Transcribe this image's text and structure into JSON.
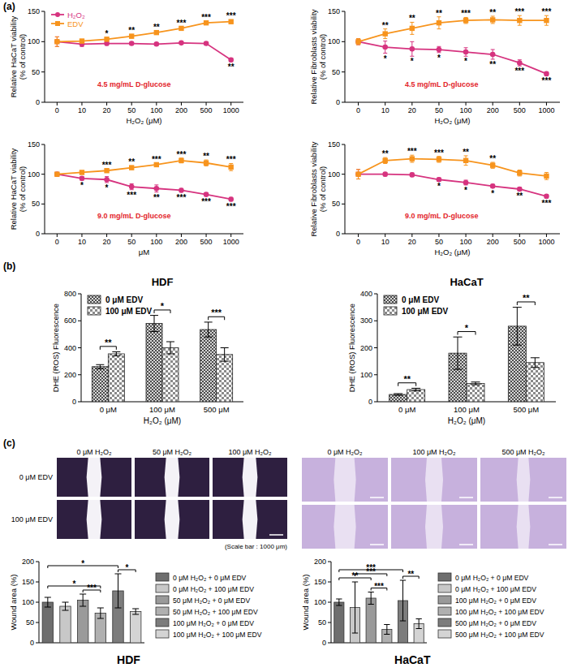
{
  "panel_labels": [
    "(a)",
    "(b)",
    "(c)"
  ],
  "image_grids": [
    {
      "columns": [
        "0 μM H₂O₂",
        "50 μM H₂O₂",
        "100 μM H₂O₂"
      ],
      "rows": [
        "0 μM EDV",
        "100 μM EDV"
      ],
      "caption": "(Scale bar : 1000 μm)"
    },
    {
      "columns": [
        "0 μM H₂O₂",
        "100 μM H₂O₂",
        "500 μM H₂O₂"
      ]
    }
  ],
  "chart_data": [
    {
      "type": "line",
      "ylabel": "Relative HaCaT viability\n(% of control)",
      "xlabel": "H₂O₂ (μM)",
      "annotation": "4.5 mg/mL D-glucose",
      "categories": [
        "0",
        "10",
        "20",
        "50",
        "100",
        "200",
        "500",
        "1000"
      ],
      "ylim": [
        0,
        150
      ],
      "yticks": [
        0,
        50,
        100,
        150
      ],
      "legend": "top-left",
      "series": [
        {
          "name": "H₂O₂",
          "color": "#d6337f",
          "marker": "circle",
          "values": [
            100,
            96,
            97,
            97,
            96,
            98,
            97,
            70
          ],
          "errors": [
            8,
            4,
            3,
            2,
            2,
            2,
            2,
            3
          ],
          "significance": [
            null,
            null,
            null,
            null,
            null,
            null,
            null,
            "**"
          ]
        },
        {
          "name": "EDV",
          "color": "#f7941d",
          "marker": "square",
          "values": [
            100,
            101,
            104,
            109,
            115,
            122,
            131,
            133
          ],
          "errors": [
            8,
            3,
            3,
            3,
            3,
            3,
            3,
            3
          ],
          "significance": [
            null,
            null,
            "*",
            "**",
            "**",
            "***",
            "***",
            "***"
          ]
        }
      ]
    },
    {
      "type": "line",
      "ylabel": "Relative Fibroblasts viability\n(% of control)",
      "xlabel": "H₂O₂ (μM)",
      "annotation": "4.5 mg/mL D-glucose",
      "categories": [
        "0",
        "10",
        "20",
        "50",
        "100",
        "200",
        "500",
        "1000"
      ],
      "ylim": [
        0,
        150
      ],
      "yticks": [
        0,
        50,
        100,
        150
      ],
      "series": [
        {
          "color": "#d6337f",
          "marker": "circle",
          "values": [
            100,
            91,
            88,
            87,
            83,
            79,
            65,
            47
          ],
          "errors": [
            5,
            10,
            12,
            5,
            7,
            8,
            5,
            3
          ],
          "significance": [
            null,
            "*",
            "*",
            "*",
            "*",
            "**",
            "***",
            "***"
          ]
        },
        {
          "color": "#f7941d",
          "marker": "square",
          "values": [
            100,
            113,
            122,
            131,
            135,
            136,
            135,
            135
          ],
          "errors": [
            5,
            8,
            10,
            10,
            5,
            6,
            8,
            8
          ],
          "significance": [
            null,
            "**",
            "**",
            "**",
            "***",
            "**",
            "***",
            "***"
          ]
        }
      ]
    },
    {
      "type": "line",
      "ylabel": "Relative HaCaT viability\n(% of control)",
      "xlabel": "μM",
      "annotation": "9.0 mg/mL D-glucose",
      "categories": [
        "0",
        "10",
        "20",
        "50",
        "100",
        "200",
        "500",
        "1000"
      ],
      "ylim": [
        0,
        150
      ],
      "yticks": [
        0,
        50,
        100,
        150
      ],
      "series": [
        {
          "color": "#d6337f",
          "marker": "circle",
          "values": [
            100,
            93,
            91,
            79,
            76,
            73,
            66,
            58
          ],
          "errors": [
            3,
            3,
            5,
            5,
            6,
            3,
            3,
            3
          ],
          "significance": [
            null,
            "*",
            "*",
            "***",
            "**",
            "***",
            "***",
            "***"
          ]
        },
        {
          "color": "#f7941d",
          "marker": "square",
          "values": [
            100,
            103,
            106,
            111,
            116,
            123,
            119,
            112
          ],
          "errors": [
            3,
            3,
            3,
            3,
            3,
            4,
            5,
            6
          ],
          "significance": [
            null,
            null,
            "***",
            "**",
            "***",
            "***",
            "**",
            "***"
          ]
        }
      ]
    },
    {
      "type": "line",
      "ylabel": "Relative Fibroblasts viability\n(% of control)",
      "xlabel": "H₂O₂ (μM)",
      "annotation": "9.0 mg/mL D-glucose",
      "categories": [
        "0",
        "10",
        "20",
        "50",
        "100",
        "200",
        "500",
        "1000"
      ],
      "ylim": [
        0,
        150
      ],
      "yticks": [
        0,
        50,
        100,
        150
      ],
      "series": [
        {
          "color": "#d6337f",
          "marker": "circle",
          "values": [
            100,
            100,
            99,
            91,
            86,
            80,
            75,
            63
          ],
          "errors": [
            8,
            3,
            3,
            3,
            4,
            3,
            3,
            3
          ],
          "significance": [
            null,
            null,
            null,
            "*",
            "*",
            "*",
            "**",
            "***"
          ]
        },
        {
          "color": "#f7941d",
          "marker": "square",
          "values": [
            100,
            123,
            126,
            125,
            123,
            115,
            102,
            97
          ],
          "errors": [
            8,
            5,
            6,
            5,
            8,
            5,
            5,
            6
          ],
          "significance": [
            null,
            "**",
            "***",
            "***",
            "**",
            "**",
            null,
            null
          ]
        }
      ]
    },
    {
      "type": "bar",
      "title": "HDF",
      "ylabel": "DHE (ROS) Fluorescence",
      "xlabel": "H₂O₂ (μM)",
      "categories": [
        "0 μM",
        "100 μM",
        "500 μM"
      ],
      "ylim": [
        0,
        800
      ],
      "yticks": [
        0,
        200,
        400,
        600,
        800
      ],
      "legend": "top-left",
      "series": [
        {
          "name": "0 μM EDV",
          "color": "#3c3c3c",
          "values": [
            260,
            580,
            535
          ],
          "errors": [
            15,
            60,
            55
          ]
        },
        {
          "name": "100 μM EDV",
          "color": "#8a8a8a",
          "values": [
            355,
            400,
            350
          ],
          "errors": [
            15,
            45,
            50
          ]
        }
      ],
      "significance": [
        "**",
        "*",
        "***"
      ]
    },
    {
      "type": "bar",
      "title": "HaCaT",
      "ylabel": "DHE (ROS) Fluorescence",
      "xlabel": "H₂O₂ (μM)",
      "categories": [
        "0 μM",
        "100 μM",
        "500 μM"
      ],
      "ylim": [
        0,
        400
      ],
      "yticks": [
        0,
        100,
        200,
        300,
        400
      ],
      "legend": "top-left",
      "series": [
        {
          "name": "0 μM EDV",
          "color": "#3c3c3c",
          "values": [
            27,
            180,
            280
          ],
          "errors": [
            3,
            60,
            70
          ]
        },
        {
          "name": "100 μM EDV",
          "color": "#8a8a8a",
          "values": [
            45,
            68,
            145
          ],
          "errors": [
            5,
            5,
            18
          ]
        }
      ],
      "significance": [
        "**",
        "*",
        "**"
      ]
    },
    {
      "type": "bar",
      "title": "HDF",
      "ylabel": "Wound area (%)",
      "tick_labels": "y",
      "legend": "right",
      "categories": [
        "0 μM H₂O₂ + 0 μM EDV",
        "0 μM H₂O₂ + 100 μM EDV",
        "50 μM H₂O₂ + 0 μM EDV",
        "50 μM H₂O₂ + 100 μM EDV",
        "100 μM H₂O₂ + 0 μM EDV",
        "100 μM H₂O₂ + 100 μM EDV"
      ],
      "values": [
        100,
        90,
        105,
        73,
        128,
        77
      ],
      "errors": [
        12,
        10,
        15,
        13,
        42,
        7
      ],
      "colors": [
        "#6e6e6e",
        "#c8c8c8",
        "#9a9a9a",
        "#b0b0b0",
        "#7c7c7c",
        "#d4d4d4"
      ],
      "ylim": [
        0,
        200
      ],
      "yticks": [
        0,
        50,
        100,
        150,
        200
      ],
      "comparisons": [
        {
          "from": 0,
          "to": 4,
          "label": "*"
        },
        {
          "from": 0,
          "to": 3,
          "label": "*"
        },
        {
          "from": 2,
          "to": 3,
          "label": "***"
        },
        {
          "from": 4,
          "to": 5,
          "label": "*"
        }
      ]
    },
    {
      "type": "bar",
      "title": "HaCaT",
      "ylabel": "Wound area (%)",
      "tick_labels": "y",
      "legend": "right",
      "categories": [
        "0 μM H₂O₂ + 0 μM EDV",
        "0 μM H₂O₂ + 100 μM EDV",
        "100 μM H₂O₂ + 0 μM EDV",
        "100 μM H₂O₂ + 100 μM EDV",
        "500 μM H₂O₂ + 0 μM EDV",
        "500 μM H₂O₂ + 100 μM EDV"
      ],
      "values": [
        100,
        87,
        110,
        33,
        104,
        47
      ],
      "errors": [
        8,
        63,
        15,
        12,
        50,
        12
      ],
      "colors": [
        "#6e6e6e",
        "#c8c8c8",
        "#9a9a9a",
        "#b0b0b0",
        "#7c7c7c",
        "#d4d4d4"
      ],
      "ylim": [
        0,
        200
      ],
      "yticks": [
        0,
        50,
        100,
        150,
        200
      ],
      "comparisons": [
        {
          "from": 0,
          "to": 2,
          "label": "**"
        },
        {
          "from": 0,
          "to": 4,
          "label": "***"
        },
        {
          "from": 1,
          "to": 3,
          "label": "***"
        },
        {
          "from": 2,
          "to": 3,
          "label": "***"
        },
        {
          "from": 4,
          "to": 5,
          "label": "**"
        }
      ]
    }
  ]
}
